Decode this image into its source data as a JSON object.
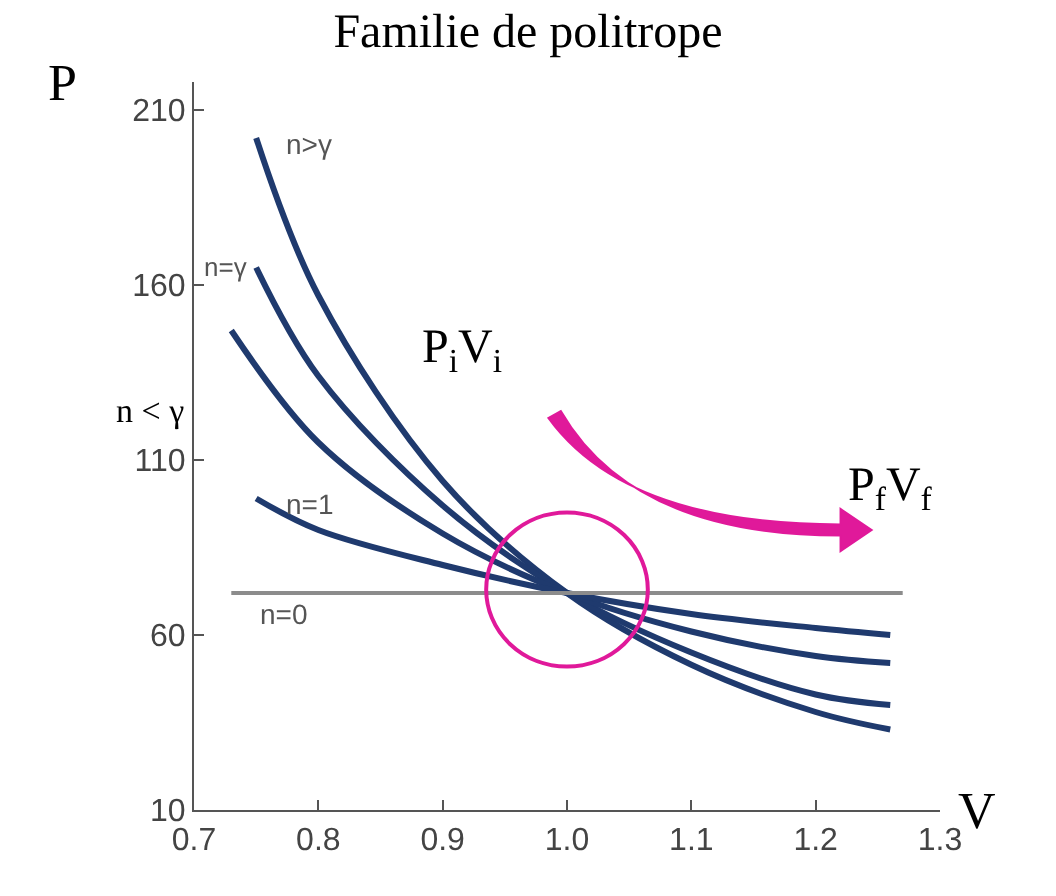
{
  "chart_data": {
    "type": "line",
    "title": "Familie de politrope",
    "xlabel": "V",
    "ylabel": "P",
    "xlim": [
      0.7,
      1.3
    ],
    "xticks": [
      0.7,
      0.8,
      0.9,
      {
        "value": 1.0,
        "label": "1.0"
      },
      1.1,
      1.2,
      1.3
    ],
    "ylim": [
      10,
      218
    ],
    "yticks": [
      10,
      60,
      110,
      160,
      210
    ],
    "legend": false,
    "marker": "none",
    "line_style": "solid",
    "series": [
      {
        "name": "n>γ",
        "color": "#1f3a6e",
        "x": [
          0.75,
          0.8,
          0.9,
          1.0,
          1.1,
          1.2,
          1.26
        ],
        "values": [
          202,
          157,
          104,
          72,
          51.5,
          38,
          33
        ]
      },
      {
        "name": "n=γ",
        "color": "#1f3a6e",
        "x": [
          0.75,
          0.8,
          0.9,
          1.0,
          1.1,
          1.2,
          1.26
        ],
        "values": [
          165,
          134,
          97,
          72,
          55,
          43,
          40
        ]
      },
      {
        "name": "n < γ",
        "color": "#1f3a6e",
        "x": [
          0.73,
          0.8,
          0.9,
          1.0,
          1.1,
          1.2,
          1.26
        ],
        "values": [
          147,
          115,
          89,
          72,
          61,
          54,
          52
        ]
      },
      {
        "name": "n=1",
        "color": "#1f3a6e",
        "x": [
          0.75,
          0.8,
          0.9,
          1.0,
          1.1,
          1.2,
          1.26
        ],
        "values": [
          99,
          90,
          80,
          72,
          66,
          62,
          60
        ]
      },
      {
        "name": "n=0",
        "color": "#8c8c8c",
        "x": [
          0.73,
          1.27
        ],
        "values": [
          72,
          72
        ]
      }
    ],
    "annotations": [
      "P$_{i}$V$_{i}$",
      "P$_{f}$V$_{f}$"
    ]
  }
}
